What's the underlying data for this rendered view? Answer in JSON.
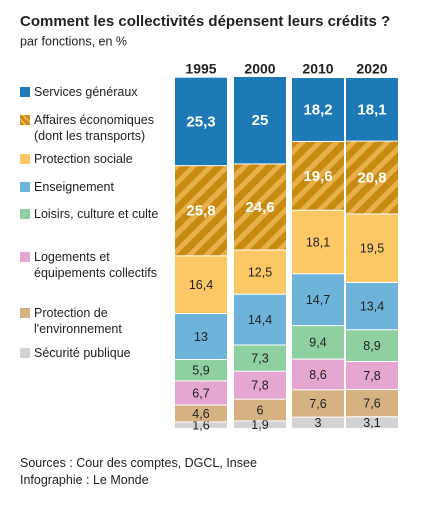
{
  "chart_data": {
    "type": "stacked-bar",
    "title": "Comment les collectivités dépensent leurs crédits ?",
    "subtitle": "par fonctions, en %",
    "categories": [
      "1995",
      "2000",
      "2010",
      "2020"
    ],
    "series": [
      {
        "name": "Services généraux",
        "color": "#1d7ab6",
        "values": [
          25.3,
          25,
          18.2,
          18.1
        ],
        "value_labels": [
          "25,3",
          "25",
          "18,2",
          "18,1"
        ]
      },
      {
        "name": "Affaires économiques (dont les transports)",
        "color": "#c98a12",
        "hatch": true,
        "values": [
          25.8,
          24.6,
          19.6,
          20.8
        ],
        "value_labels": [
          "25,8",
          "24,6",
          "19,6",
          "20,8"
        ]
      },
      {
        "name": "Protection sociale",
        "color": "#fcc865",
        "values": [
          16.4,
          12.5,
          18.1,
          19.5
        ],
        "value_labels": [
          "16,4",
          "12,5",
          "18,1",
          "19,5"
        ]
      },
      {
        "name": "Enseignement",
        "color": "#6db3da",
        "values": [
          13,
          14.4,
          14.7,
          13.4
        ],
        "value_labels": [
          "13",
          "14,4",
          "14,7",
          "13,4"
        ]
      },
      {
        "name": "Loisirs, culture et culte",
        "color": "#8fd0a1",
        "values": [
          5.9,
          7.3,
          9.4,
          8.9
        ],
        "value_labels": [
          "5,9",
          "7,3",
          "9,4",
          "8,9"
        ]
      },
      {
        "name": "Logements et équipements collectifs",
        "color": "#e6a6d2",
        "values": [
          6.7,
          7.8,
          8.6,
          7.8
        ],
        "value_labels": [
          "6,7",
          "7,8",
          "8,6",
          "7,8"
        ]
      },
      {
        "name": "Protection de l'environnement",
        "color": "#d6b283",
        "values": [
          4.6,
          6,
          7.6,
          7.6
        ],
        "value_labels": [
          "4,6",
          "6",
          "7,6",
          "7,6"
        ]
      },
      {
        "name": "Sécurité publique",
        "color": "#d3d3d3",
        "values": [
          1.6,
          1.9,
          3,
          3.1
        ],
        "value_labels": [
          "1,6",
          "1,9",
          "3",
          "3,1"
        ]
      }
    ],
    "source": [
      "Sources : Cour des comptes, DGCL, Insee",
      "Infographie : Le Monde"
    ]
  }
}
